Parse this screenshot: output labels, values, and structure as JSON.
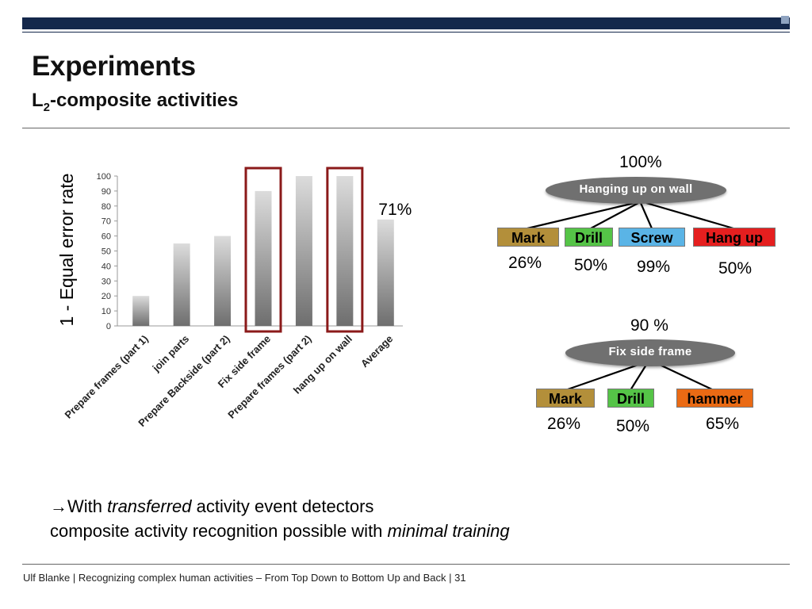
{
  "slide": {
    "title": "Experiments",
    "subtitle_prefix": "L",
    "subtitle_sub": "2",
    "subtitle_rest": "-composite activities",
    "footer": "Ulf Blanke | Recognizing complex human activities – From Top Down to Bottom Up and Back | 31",
    "bullet_arrow": "→",
    "bullet_line1_a": "With ",
    "bullet_line1_em": "transferred",
    "bullet_line1_b": " activity event detectors",
    "bullet_line2_a": "composite activity recognition possible with ",
    "bullet_line2_em": "minimal training"
  },
  "chart_data": {
    "type": "bar",
    "categories": [
      "Prepare frames (part 1)",
      "join parts",
      "Prepare Backside (part 2)",
      "Fix side frame",
      "Prepare frames (part 2)",
      "hang up on wall",
      "Average"
    ],
    "values": [
      20,
      55,
      60,
      90,
      100,
      100,
      71
    ],
    "ylabel": "1 - Equal error rate",
    "ylim": [
      0,
      100
    ],
    "yticks": [
      0,
      10,
      20,
      30,
      40,
      50,
      60,
      70,
      80,
      90,
      100
    ],
    "highlighted_categories": [
      "Fix side frame",
      "hang up on wall"
    ],
    "highlight_color": "#8b1a1a",
    "annotation": "71%"
  },
  "tree1": {
    "root_percent": "100%",
    "root_label": "Hanging up on wall",
    "children": [
      {
        "label": "Mark",
        "percent": "26%",
        "color": "#b38f3a",
        "text_color": "#000000"
      },
      {
        "label": "Drill",
        "percent": "50%",
        "color": "#55c447",
        "text_color": "#000000"
      },
      {
        "label": "Screw",
        "percent": "99%",
        "color": "#5ab4e6",
        "text_color": "#000000"
      },
      {
        "label": "Hang up",
        "percent": "50%",
        "color": "#e51f1f",
        "text_color": "#000000"
      }
    ]
  },
  "tree2": {
    "root_percent": "90 %",
    "root_label": "Fix side frame",
    "children": [
      {
        "label": "Mark",
        "percent": "26%",
        "color": "#b38f3a",
        "text_color": "#000000"
      },
      {
        "label": "Drill",
        "percent": "50%",
        "color": "#55c447",
        "text_color": "#000000"
      },
      {
        "label": "hammer",
        "percent": "65%",
        "color": "#ea6a14",
        "text_color": "#000000"
      }
    ]
  }
}
